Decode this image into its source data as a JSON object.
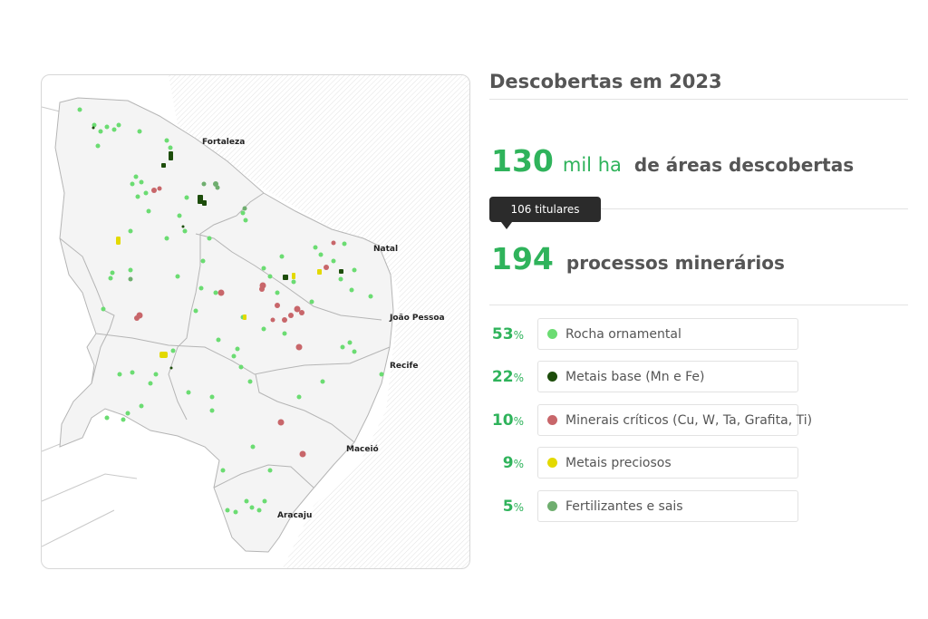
{
  "map": {
    "cities": [
      "Fortaleza",
      "Natal",
      "João Pessoa",
      "Recife",
      "Maceió",
      "Aracaju"
    ],
    "colors": {
      "land": "#f2f2f2",
      "border": "#b9b9b9",
      "ocean_hatch": "#e1e1e1"
    }
  },
  "header": {
    "title": "Descobertas em 2023"
  },
  "stats": {
    "area": {
      "value": "130",
      "unit": "mil ha",
      "text": "de áreas descobertas"
    },
    "processes": {
      "value": "194",
      "text": "processos minerários",
      "tooltip": "106 titulares"
    }
  },
  "categories": [
    {
      "pct": "53",
      "pct_sign": "%",
      "label": "Rocha ornamental",
      "color": "#6bdc72"
    },
    {
      "pct": "22",
      "pct_sign": "%",
      "label": "Metais base (Mn e Fe)",
      "color": "#1d4d0b"
    },
    {
      "pct": "10",
      "pct_sign": "%",
      "label": "Minerais críticos  (Cu, W, Ta, Grafita, Ti)",
      "color": "#c8666a"
    },
    {
      "pct": "9",
      "pct_sign": "%",
      "label": "Metais preciosos",
      "color": "#e3d900"
    },
    {
      "pct": "5",
      "pct_sign": "%",
      "label": "Fertilizantes e sais",
      "color": "#6fae6f"
    }
  ],
  "accent": "#2fb35b"
}
